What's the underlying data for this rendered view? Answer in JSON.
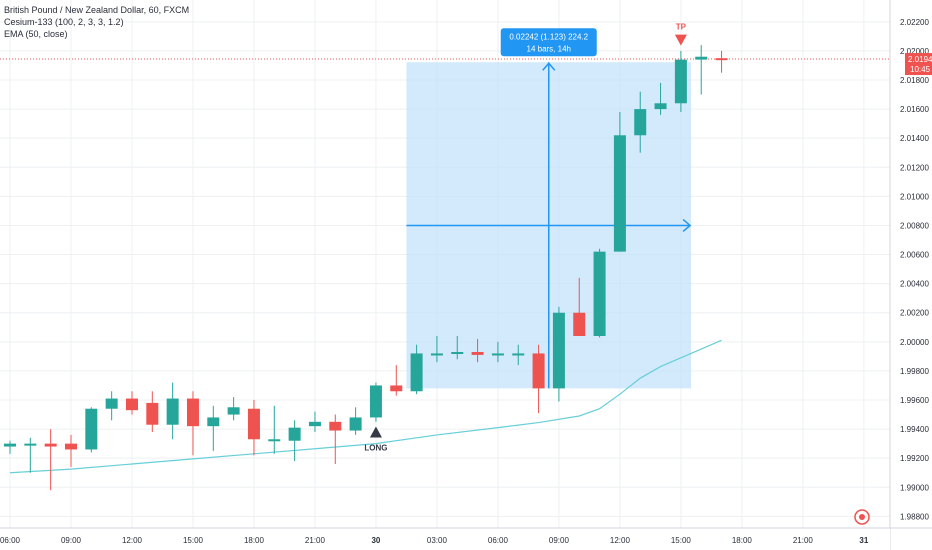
{
  "legend": {
    "symbol_line": "British Pound / New Zealand Dollar, 60, FXCM",
    "indicator_1": "Cesium-133 (100, 2, 3, 3, 1.2)",
    "indicator_2": "EMA (50, close)"
  },
  "colors": {
    "up": "#26a69a",
    "down": "#ef5350",
    "ema": "#66cfd8",
    "range_fill": "#bbdefb",
    "range_line": "#2196f3",
    "price_line": "#ef5350",
    "grid": "#eef0f3",
    "axis_text": "#2a2e39",
    "signal_long": "#363a45",
    "signal_tp": "#ef5350"
  },
  "chart_data": {
    "type": "candlestick",
    "title": "British Pound / New Zealand Dollar, 60, FXCM",
    "y_ticks": [
      "2.02200",
      "2.02000",
      "2.01800",
      "2.01600",
      "2.01400",
      "2.01200",
      "2.01000",
      "2.00800",
      "2.00600",
      "2.00400",
      "2.00200",
      "2.00000",
      "1.99800",
      "1.99600",
      "1.99400",
      "1.99200",
      "1.99000",
      "1.98800"
    ],
    "ylim": [
      1.9872,
      2.0235
    ],
    "x_ticks": [
      {
        "label": "06:00",
        "bar": 0
      },
      {
        "label": "09:00",
        "bar": 3
      },
      {
        "label": "12:00",
        "bar": 6
      },
      {
        "label": "15:00",
        "bar": 9
      },
      {
        "label": "18:00",
        "bar": 12
      },
      {
        "label": "21:00",
        "bar": 15
      },
      {
        "label": "30",
        "bar": 18
      },
      {
        "label": "03:00",
        "bar": 21
      },
      {
        "label": "06:00",
        "bar": 24
      },
      {
        "label": "09:00",
        "bar": 27
      },
      {
        "label": "12:00",
        "bar": 30
      },
      {
        "label": "15:00",
        "bar": 33
      },
      {
        "label": "18:00",
        "bar": 36
      },
      {
        "label": "21:00",
        "bar": 39
      },
      {
        "label": "31",
        "bar": 42
      }
    ],
    "candles": [
      {
        "o": 1.9928,
        "h": 1.9932,
        "l": 1.9923,
        "c": 1.993
      },
      {
        "o": 1.993,
        "h": 1.9934,
        "l": 1.991,
        "c": 1.993
      },
      {
        "o": 1.993,
        "h": 1.994,
        "l": 1.9898,
        "c": 1.9928
      },
      {
        "o": 1.993,
        "h": 1.9936,
        "l": 1.9914,
        "c": 1.9926
      },
      {
        "o": 1.9926,
        "h": 1.9955,
        "l": 1.9924,
        "c": 1.9954
      },
      {
        "o": 1.9954,
        "h": 1.9966,
        "l": 1.9946,
        "c": 1.9961
      },
      {
        "o": 1.9961,
        "h": 1.9966,
        "l": 1.995,
        "c": 1.9953
      },
      {
        "o": 1.9958,
        "h": 1.9966,
        "l": 1.9938,
        "c": 1.9943
      },
      {
        "o": 1.9943,
        "h": 1.9972,
        "l": 1.9933,
        "c": 1.9961
      },
      {
        "o": 1.9961,
        "h": 1.9966,
        "l": 1.9922,
        "c": 1.9942
      },
      {
        "o": 1.9942,
        "h": 1.9956,
        "l": 1.9925,
        "c": 1.9948
      },
      {
        "o": 1.995,
        "h": 1.9962,
        "l": 1.9946,
        "c": 1.9955
      },
      {
        "o": 1.9954,
        "h": 1.996,
        "l": 1.9922,
        "c": 1.9933
      },
      {
        "o": 1.9932,
        "h": 1.9956,
        "l": 1.9923,
        "c": 1.9933
      },
      {
        "o": 1.9932,
        "h": 1.9946,
        "l": 1.9918,
        "c": 1.9941
      },
      {
        "o": 1.9942,
        "h": 1.9952,
        "l": 1.9938,
        "c": 1.9945
      },
      {
        "o": 1.9945,
        "h": 1.995,
        "l": 1.9916,
        "c": 1.9939
      },
      {
        "o": 1.9939,
        "h": 1.9955,
        "l": 1.9936,
        "c": 1.9948
      },
      {
        "o": 1.9948,
        "h": 1.9972,
        "l": 1.9945,
        "c": 1.997
      },
      {
        "o": 1.997,
        "h": 1.9984,
        "l": 1.9963,
        "c": 1.9966
      },
      {
        "o": 1.9966,
        "h": 1.9998,
        "l": 1.9964,
        "c": 1.9992
      },
      {
        "o": 1.9992,
        "h": 2.0004,
        "l": 1.9986,
        "c": 1.9992
      },
      {
        "o": 1.9992,
        "h": 2.0004,
        "l": 1.9988,
        "c": 1.9993
      },
      {
        "o": 1.9993,
        "h": 2.0002,
        "l": 1.9986,
        "c": 1.9991
      },
      {
        "o": 1.9991,
        "h": 2.0,
        "l": 1.9986,
        "c": 1.9992
      },
      {
        "o": 1.9991,
        "h": 1.9998,
        "l": 1.9984,
        "c": 1.9992
      },
      {
        "o": 1.9992,
        "h": 1.9998,
        "l": 1.9951,
        "c": 1.9968
      },
      {
        "o": 1.9968,
        "h": 2.0024,
        "l": 1.9959,
        "c": 2.002
      },
      {
        "o": 2.002,
        "h": 2.0044,
        "l": 2.0004,
        "c": 2.0004
      },
      {
        "o": 2.0004,
        "h": 2.0064,
        "l": 2.0003,
        "c": 2.0062
      },
      {
        "o": 2.0062,
        "h": 2.0158,
        "l": 2.0062,
        "c": 2.0142
      },
      {
        "o": 2.0142,
        "h": 2.0172,
        "l": 2.013,
        "c": 2.016
      },
      {
        "o": 2.016,
        "h": 2.0178,
        "l": 2.0156,
        "c": 2.0164
      },
      {
        "o": 2.0164,
        "h": 2.02,
        "l": 2.0158,
        "c": 2.0194
      },
      {
        "o": 2.0194,
        "h": 2.0204,
        "l": 2.017,
        "c": 2.0196
      },
      {
        "o": 2.0195,
        "h": 2.02,
        "l": 2.0185,
        "c": 2.0194
      }
    ],
    "ema": [
      {
        "bar": 0,
        "v": 1.991
      },
      {
        "bar": 3,
        "v": 1.99125
      },
      {
        "bar": 6,
        "v": 1.9916
      },
      {
        "bar": 9,
        "v": 1.99195
      },
      {
        "bar": 12,
        "v": 1.9923
      },
      {
        "bar": 15,
        "v": 1.99265
      },
      {
        "bar": 18,
        "v": 1.993
      },
      {
        "bar": 21,
        "v": 1.9936
      },
      {
        "bar": 24,
        "v": 1.9941
      },
      {
        "bar": 26,
        "v": 1.99445
      },
      {
        "bar": 28,
        "v": 1.9949
      },
      {
        "bar": 29,
        "v": 1.9954
      },
      {
        "bar": 30,
        "v": 1.9964
      },
      {
        "bar": 31,
        "v": 1.9975
      },
      {
        "bar": 32,
        "v": 1.9983
      },
      {
        "bar": 33,
        "v": 1.9989
      },
      {
        "bar": 34,
        "v": 1.9995
      },
      {
        "bar": 35,
        "v": 2.0001
      }
    ],
    "measure": {
      "from_bar": 19.5,
      "to_bar": 33.5,
      "low": 1.9968,
      "high": 2.01922,
      "mid": 2.008,
      "line_bar": 26.5,
      "label_line1": "0.02242 (1.123) 224.2",
      "label_line2": "14 bars, 14h"
    },
    "signals": [
      {
        "label": "LONG",
        "bar": 18,
        "value": 1.9939,
        "type": "long"
      },
      {
        "label": "TP",
        "bar": 33,
        "value": 2.0205,
        "type": "tp"
      }
    ],
    "current_price": {
      "value": 2.01944,
      "price_label": "2.01944",
      "countdown": "10:45"
    }
  }
}
